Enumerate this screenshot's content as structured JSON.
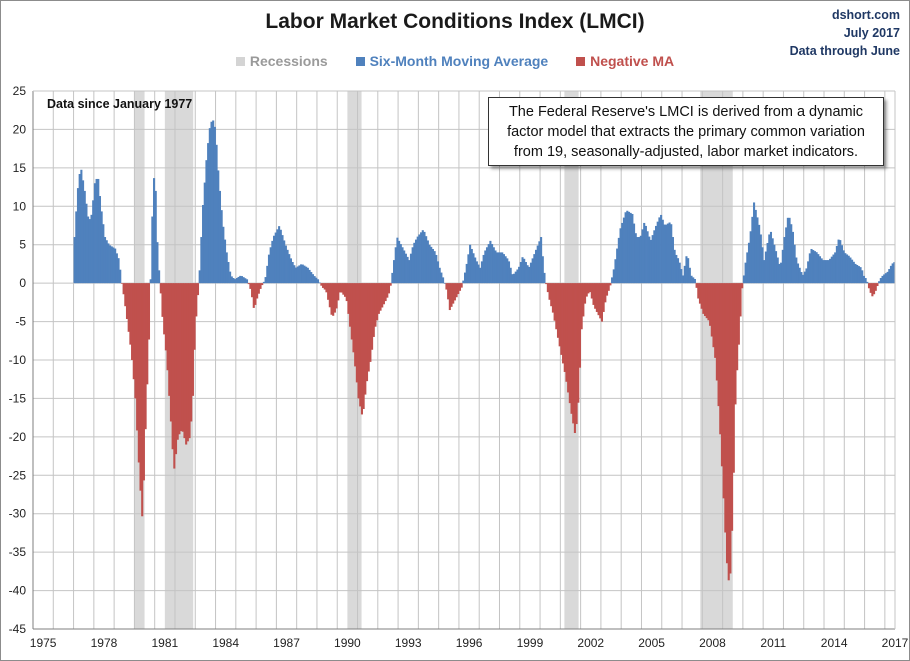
{
  "chart_data": {
    "type": "bar",
    "title": "Labor Market Conditions Index  (LMCI)",
    "credits": [
      "dshort.com",
      "July 2017",
      "Data through June"
    ],
    "legend": [
      {
        "label": "Recessions",
        "color": "#d4d4d4",
        "text_color": "#9a9a9a"
      },
      {
        "label": "Six-Month Moving Average",
        "color": "#4f81bd",
        "text_color": "#4f81bd"
      },
      {
        "label": "Negative MA",
        "color": "#c0504d",
        "text_color": "#c0504d"
      }
    ],
    "note": "The Federal Reserve's LMCI is derived from a dynamic factor model that extracts the primary common variation from 19, seasonally-adjusted, labor market indicators.",
    "annotation": "Data since January 1977",
    "xlim": [
      1975,
      2017.5
    ],
    "ylim": [
      -45,
      25
    ],
    "yticks": [
      25,
      20,
      15,
      10,
      5,
      0,
      -5,
      -10,
      -15,
      -20,
      -25,
      -30,
      -35,
      -40,
      -45
    ],
    "xticks": [
      1975,
      1978,
      1981,
      1984,
      1987,
      1990,
      1993,
      1996,
      1999,
      2002,
      2005,
      2008,
      2011,
      2014,
      2017
    ],
    "grid": true,
    "recessions": [
      [
        1980.0,
        1980.5
      ],
      [
        1981.5,
        1982.9
      ],
      [
        1990.5,
        1991.2
      ],
      [
        2001.2,
        2001.9
      ],
      [
        2007.9,
        2009.5
      ]
    ],
    "anchors": [
      [
        1977.0,
        6
      ],
      [
        1977.15,
        12
      ],
      [
        1977.3,
        15.3
      ],
      [
        1977.5,
        12
      ],
      [
        1977.7,
        8
      ],
      [
        1977.85,
        9
      ],
      [
        1978.0,
        13
      ],
      [
        1978.15,
        14
      ],
      [
        1978.3,
        10
      ],
      [
        1978.5,
        6
      ],
      [
        1978.7,
        5
      ],
      [
        1979.0,
        4.5
      ],
      [
        1979.2,
        3
      ],
      [
        1979.3,
        0.5
      ],
      [
        1979.45,
        -2
      ],
      [
        1979.6,
        -5
      ],
      [
        1979.8,
        -9
      ],
      [
        1980.0,
        -15
      ],
      [
        1980.2,
        -25
      ],
      [
        1980.35,
        -31
      ],
      [
        1980.5,
        -19
      ],
      [
        1980.7,
        -5
      ],
      [
        1980.8,
        6
      ],
      [
        1980.9,
        14
      ],
      [
        1981.0,
        12
      ],
      [
        1981.1,
        4
      ],
      [
        1981.2,
        0.5
      ],
      [
        1981.35,
        -5
      ],
      [
        1981.55,
        -10
      ],
      [
        1981.75,
        -18
      ],
      [
        1981.9,
        -24.5
      ],
      [
        1982.1,
        -20
      ],
      [
        1982.3,
        -19
      ],
      [
        1982.5,
        -21
      ],
      [
        1982.7,
        -20
      ],
      [
        1982.85,
        -14
      ],
      [
        1982.95,
        -6
      ],
      [
        1983.1,
        -1
      ],
      [
        1983.2,
        3
      ],
      [
        1983.3,
        9
      ],
      [
        1983.5,
        16
      ],
      [
        1983.65,
        20
      ],
      [
        1983.8,
        21.5
      ],
      [
        1983.95,
        20
      ],
      [
        1984.1,
        14
      ],
      [
        1984.3,
        8
      ],
      [
        1984.5,
        4
      ],
      [
        1984.7,
        1
      ],
      [
        1984.9,
        0.5
      ],
      [
        1985.2,
        1
      ],
      [
        1985.5,
        0.5
      ],
      [
        1985.7,
        -1
      ],
      [
        1985.85,
        -3.5
      ],
      [
        1986.0,
        -2
      ],
      [
        1986.2,
        -0.5
      ],
      [
        1986.4,
        0.5
      ],
      [
        1986.6,
        4
      ],
      [
        1986.8,
        6
      ],
      [
        1987.1,
        7.5
      ],
      [
        1987.4,
        5
      ],
      [
        1987.7,
        3
      ],
      [
        1987.9,
        2
      ],
      [
        1988.2,
        2.5
      ],
      [
        1988.5,
        2
      ],
      [
        1988.8,
        1
      ],
      [
        1989.0,
        0.5
      ],
      [
        1989.2,
        -0.5
      ],
      [
        1989.4,
        -1
      ],
      [
        1989.7,
        -4.5
      ],
      [
        1989.9,
        -3.5
      ],
      [
        1990.1,
        -1
      ],
      [
        1990.4,
        -2
      ],
      [
        1990.6,
        -6
      ],
      [
        1990.8,
        -10
      ],
      [
        1991.0,
        -15
      ],
      [
        1991.2,
        -17.5
      ],
      [
        1991.4,
        -13
      ],
      [
        1991.6,
        -10
      ],
      [
        1991.8,
        -6
      ],
      [
        1992.0,
        -4
      ],
      [
        1992.2,
        -3
      ],
      [
        1992.4,
        -2
      ],
      [
        1992.55,
        -1
      ],
      [
        1992.7,
        2
      ],
      [
        1992.9,
        6
      ],
      [
        1993.1,
        5
      ],
      [
        1993.3,
        4
      ],
      [
        1993.5,
        3
      ],
      [
        1993.7,
        5
      ],
      [
        1993.9,
        6
      ],
      [
        1994.2,
        7
      ],
      [
        1994.5,
        5
      ],
      [
        1994.8,
        4
      ],
      [
        1995.0,
        2
      ],
      [
        1995.2,
        0.5
      ],
      [
        1995.35,
        -1
      ],
      [
        1995.5,
        -3.5
      ],
      [
        1995.8,
        -2
      ],
      [
        1996.1,
        -0.5
      ],
      [
        1996.3,
        2
      ],
      [
        1996.5,
        5
      ],
      [
        1996.8,
        3
      ],
      [
        1997.0,
        2
      ],
      [
        1997.2,
        4
      ],
      [
        1997.5,
        5.5
      ],
      [
        1997.8,
        4
      ],
      [
        1998.1,
        4
      ],
      [
        1998.4,
        3
      ],
      [
        1998.6,
        1
      ],
      [
        1998.9,
        2
      ],
      [
        1999.1,
        3.5
      ],
      [
        1999.4,
        2
      ],
      [
        1999.7,
        4
      ],
      [
        2000.0,
        6
      ],
      [
        2000.1,
        3
      ],
      [
        2000.2,
        0.5
      ],
      [
        2000.4,
        -2
      ],
      [
        2000.6,
        -4
      ],
      [
        2000.9,
        -8
      ],
      [
        2001.2,
        -12
      ],
      [
        2001.5,
        -17
      ],
      [
        2001.7,
        -20
      ],
      [
        2001.85,
        -15
      ],
      [
        2002.0,
        -6
      ],
      [
        2002.2,
        -2
      ],
      [
        2002.4,
        -1
      ],
      [
        2002.6,
        -3
      ],
      [
        2002.8,
        -4
      ],
      [
        2003.0,
        -5
      ],
      [
        2003.2,
        -2
      ],
      [
        2003.4,
        -0.5
      ],
      [
        2003.6,
        2
      ],
      [
        2003.9,
        7
      ],
      [
        2004.2,
        9.5
      ],
      [
        2004.5,
        9
      ],
      [
        2004.7,
        6
      ],
      [
        2004.9,
        6
      ],
      [
        2005.1,
        8
      ],
      [
        2005.4,
        5.5
      ],
      [
        2005.6,
        7
      ],
      [
        2005.9,
        9
      ],
      [
        2006.1,
        7.5
      ],
      [
        2006.4,
        8
      ],
      [
        2006.6,
        4
      ],
      [
        2006.8,
        3
      ],
      [
        2007.0,
        1
      ],
      [
        2007.2,
        4
      ],
      [
        2007.4,
        1
      ],
      [
        2007.6,
        0.5
      ],
      [
        2007.75,
        -2
      ],
      [
        2008.0,
        -4
      ],
      [
        2008.3,
        -5
      ],
      [
        2008.6,
        -10
      ],
      [
        2008.8,
        -18
      ],
      [
        2009.0,
        -28
      ],
      [
        2009.15,
        -36
      ],
      [
        2009.3,
        -40
      ],
      [
        2009.45,
        -30
      ],
      [
        2009.6,
        -14
      ],
      [
        2009.8,
        -6
      ],
      [
        2009.9,
        -1
      ],
      [
        2010.1,
        3
      ],
      [
        2010.3,
        6
      ],
      [
        2010.5,
        10.5
      ],
      [
        2010.8,
        7
      ],
      [
        2011.0,
        3
      ],
      [
        2011.3,
        7
      ],
      [
        2011.6,
        4
      ],
      [
        2011.8,
        2
      ],
      [
        2012.0,
        6
      ],
      [
        2012.2,
        9
      ],
      [
        2012.4,
        7
      ],
      [
        2012.6,
        3
      ],
      [
        2012.9,
        1
      ],
      [
        2013.1,
        2
      ],
      [
        2013.3,
        4.5
      ],
      [
        2013.6,
        4
      ],
      [
        2013.9,
        3
      ],
      [
        2014.2,
        3
      ],
      [
        2014.5,
        4
      ],
      [
        2014.7,
        6
      ],
      [
        2014.95,
        4
      ],
      [
        2015.2,
        3.5
      ],
      [
        2015.5,
        2.5
      ],
      [
        2015.8,
        2
      ],
      [
        2015.9,
        1
      ],
      [
        2016.05,
        0.5
      ],
      [
        2016.2,
        -1
      ],
      [
        2016.35,
        -1.8
      ],
      [
        2016.5,
        -1
      ],
      [
        2016.7,
        0.5
      ],
      [
        2016.85,
        1
      ],
      [
        2017.1,
        1.5
      ],
      [
        2017.3,
        2.5
      ],
      [
        2017.45,
        2.8
      ]
    ]
  }
}
